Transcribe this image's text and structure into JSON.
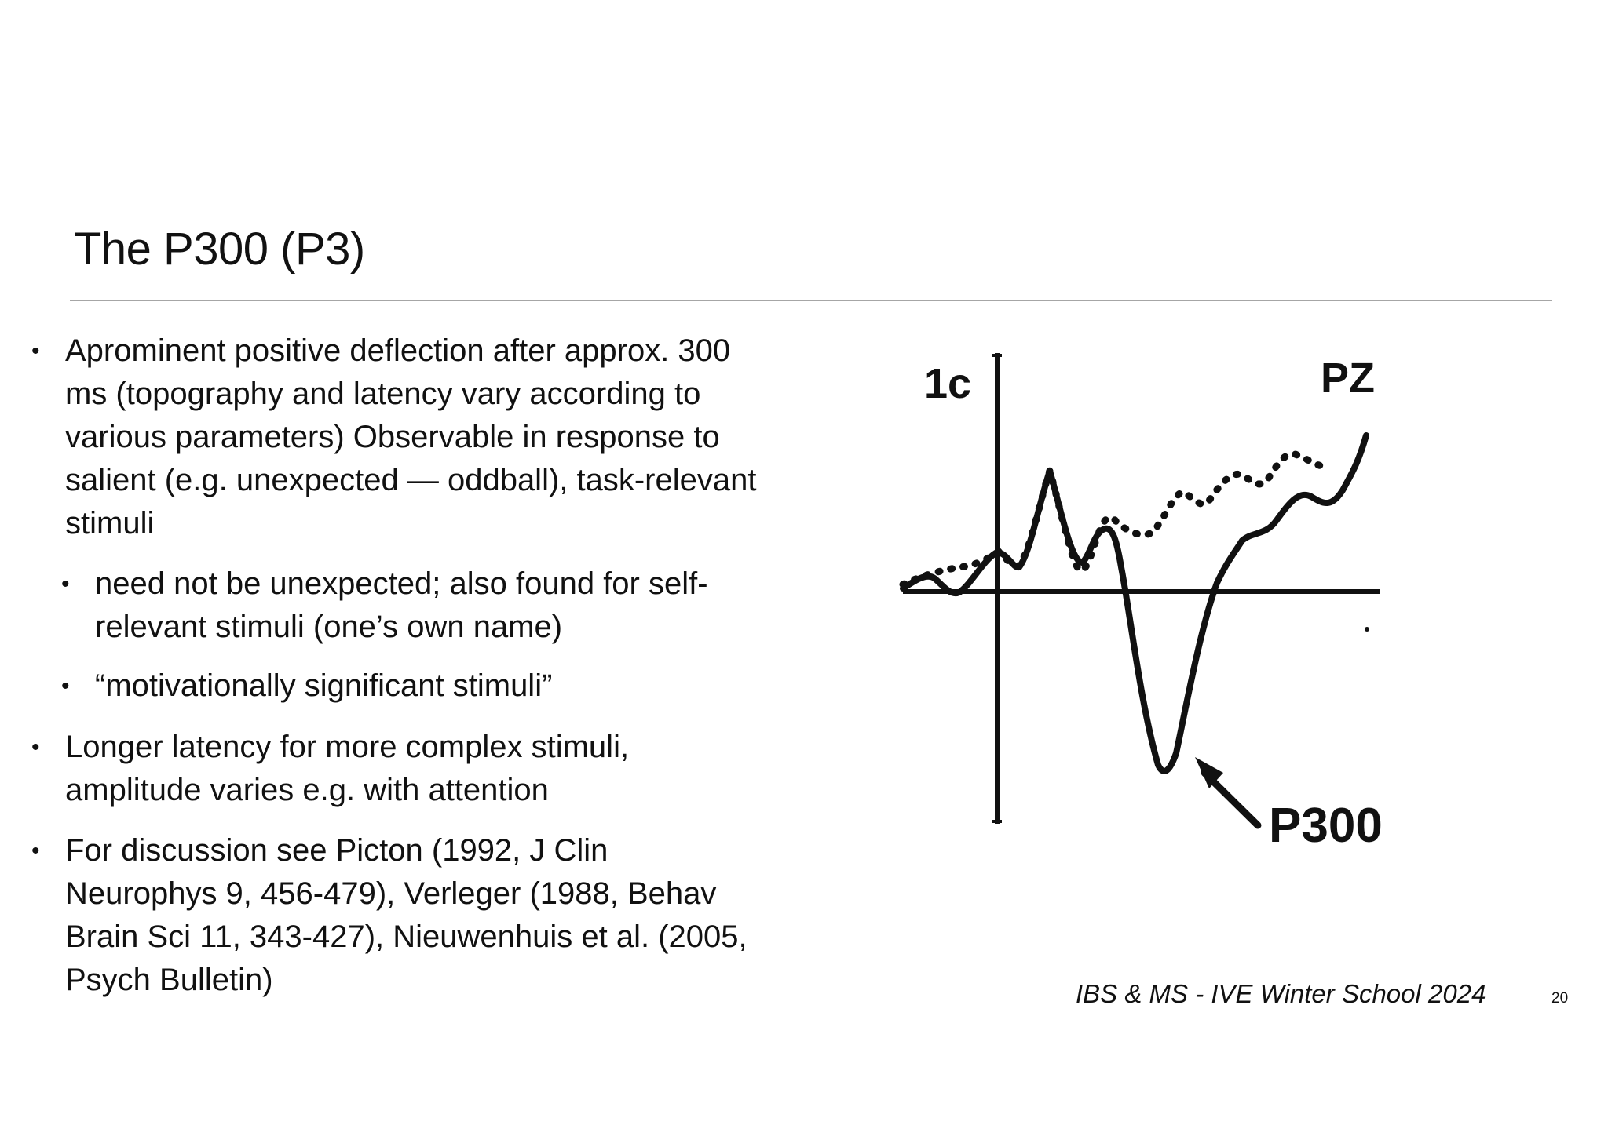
{
  "slide": {
    "title": "The P300 (P3)",
    "bullets": [
      {
        "level": 1,
        "lines": [
          "Aprominent positive deflection after approx. 300",
          "ms (topography and latency vary according to",
          "various parameters) Observable in response to",
          "salient (e.g. unexpected — oddball), task-relevant",
          "stimuli"
        ]
      },
      {
        "level": 2,
        "lines": [
          "need not be unexpected; also found for self-",
          "relevant stimuli (one’s own name)"
        ]
      },
      {
        "level": 2,
        "lines": [
          "“motivationally significant stimuli”"
        ]
      },
      {
        "level": 1,
        "lines": [
          "Longer latency for more complex stimuli,",
          "amplitude varies e.g. with attention"
        ]
      },
      {
        "level": 1,
        "lines": [
          "For discussion see Picton (1992, J Clin",
          "Neurophys 9, 456-479), Verleger (1988, Behav",
          "Brain Sci 11, 343-427), Nieuwenhuis et al. (2005,",
          "Psych Bulletin)"
        ]
      }
    ],
    "bullet_glyph": "•"
  },
  "figure": {
    "scale_label": "1c",
    "electrode_label": "PZ",
    "component_label": "P300",
    "line_color": "#111111"
  },
  "footer": {
    "text": "IBS & MS - IVE Winter School 2024",
    "page_number": "20"
  }
}
